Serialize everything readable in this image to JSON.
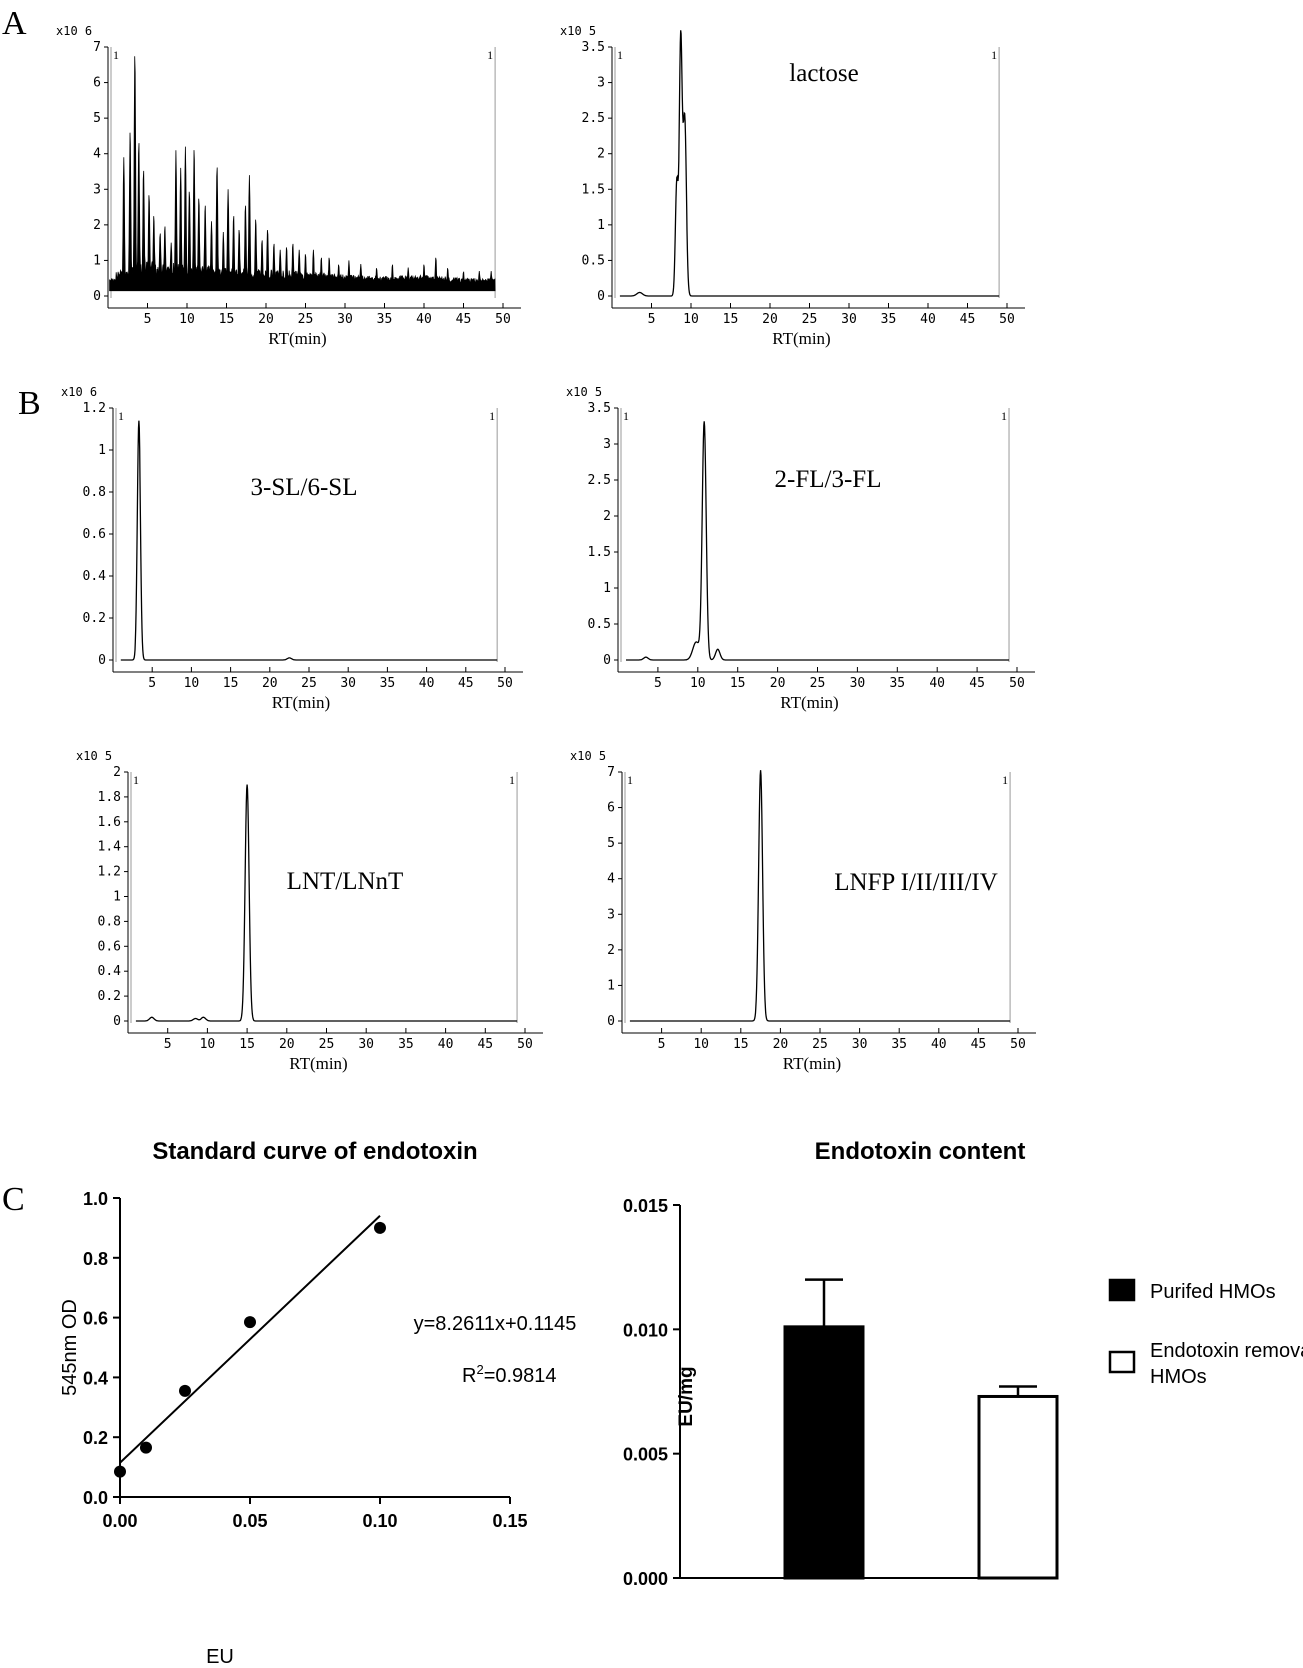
{
  "panels": {
    "A": "A",
    "B": "B",
    "C": "C"
  },
  "chart_data": [
    {
      "id": "A1",
      "type": "line",
      "title": "",
      "xlabel": "RT(min)",
      "ylabel": "",
      "multiplier": "x10 6",
      "annotation": "",
      "marker_left": "1",
      "marker_right": "1",
      "xlim": [
        0,
        50
      ],
      "ylim": [
        0,
        7
      ],
      "xticks": [
        5,
        10,
        15,
        20,
        25,
        30,
        35,
        40,
        45,
        50
      ],
      "yticks": [
        0,
        1,
        2,
        3,
        4,
        5,
        6,
        7
      ],
      "x_end": 49,
      "baseline": 0.3,
      "noise": [
        [
          1.0,
          0.7
        ],
        [
          5.0,
          1.0
        ],
        [
          10.0,
          0.9
        ],
        [
          15.0,
          0.8
        ],
        [
          20.0,
          0.75
        ],
        [
          25.0,
          0.7
        ],
        [
          30.0,
          0.6
        ],
        [
          35.0,
          0.55
        ],
        [
          40.0,
          0.6
        ],
        [
          45.0,
          0.5
        ],
        [
          49.0,
          0.5
        ]
      ],
      "peaks": [
        [
          2.0,
          3.9
        ],
        [
          2.8,
          4.7
        ],
        [
          3.4,
          6.9
        ],
        [
          3.9,
          4.4
        ],
        [
          4.5,
          3.6
        ],
        [
          5.2,
          2.9
        ],
        [
          5.8,
          2.3
        ],
        [
          6.6,
          1.8
        ],
        [
          7.2,
          2.0
        ],
        [
          8.0,
          1.5
        ],
        [
          8.6,
          4.1
        ],
        [
          9.2,
          3.6
        ],
        [
          9.8,
          4.2
        ],
        [
          10.3,
          3.0
        ],
        [
          10.9,
          4.2
        ],
        [
          11.5,
          2.8
        ],
        [
          12.3,
          2.6
        ],
        [
          13.1,
          2.1
        ],
        [
          13.8,
          3.7
        ],
        [
          14.6,
          1.8
        ],
        [
          15.2,
          3.0
        ],
        [
          15.9,
          2.3
        ],
        [
          16.6,
          1.9
        ],
        [
          17.4,
          2.6
        ],
        [
          17.9,
          3.4
        ],
        [
          18.7,
          2.2
        ],
        [
          19.5,
          1.6
        ],
        [
          20.2,
          1.9
        ],
        [
          21.0,
          1.5
        ],
        [
          21.8,
          1.3
        ],
        [
          22.6,
          1.4
        ],
        [
          23.4,
          1.5
        ],
        [
          24.2,
          1.3
        ],
        [
          25.0,
          1.2
        ],
        [
          26.0,
          1.3
        ],
        [
          27.0,
          1.1
        ],
        [
          28.0,
          1.1
        ],
        [
          29.2,
          0.9
        ],
        [
          30.5,
          1.0
        ],
        [
          32.0,
          0.9
        ],
        [
          34.0,
          0.8
        ],
        [
          36.0,
          0.9
        ],
        [
          38.0,
          0.8
        ],
        [
          40.0,
          0.9
        ],
        [
          41.5,
          1.1
        ],
        [
          43.0,
          0.8
        ],
        [
          45.0,
          0.7
        ],
        [
          47.0,
          0.7
        ],
        [
          48.5,
          0.7
        ]
      ]
    },
    {
      "id": "A2",
      "type": "line",
      "title": "",
      "xlabel": "RT(min)",
      "ylabel": "",
      "multiplier": "x10 5",
      "annotation": "lactose",
      "marker_left": "1",
      "marker_right": "1",
      "xlim": [
        0,
        50
      ],
      "ylim": [
        0,
        3.5
      ],
      "xticks": [
        5,
        10,
        15,
        20,
        25,
        30,
        35,
        40,
        45,
        50
      ],
      "yticks": [
        0,
        0.5,
        1,
        1.5,
        2,
        2.5,
        3,
        3.5
      ],
      "x_end": 49,
      "baseline": 0.0,
      "peaks": [
        [
          3.5,
          0.05,
          0.5
        ],
        [
          8.2,
          1.6,
          0.25
        ],
        [
          8.7,
          3.55,
          0.25
        ],
        [
          9.2,
          2.5,
          0.3
        ]
      ]
    },
    {
      "id": "B1",
      "type": "line",
      "title": "",
      "xlabel": "RT(min)",
      "ylabel": "",
      "multiplier": "x10 6",
      "annotation": "3-SL/6-SL",
      "marker_left": "1",
      "marker_right": "1",
      "xlim": [
        0,
        50
      ],
      "ylim": [
        0,
        1.2
      ],
      "xticks": [
        5,
        10,
        15,
        20,
        25,
        30,
        35,
        40,
        45,
        50
      ],
      "yticks": [
        0,
        0.2,
        0.4,
        0.6,
        0.8,
        1,
        1.2
      ],
      "x_end": 49,
      "baseline": 0.0,
      "peaks": [
        [
          3.3,
          1.14,
          0.28
        ],
        [
          22.5,
          0.01,
          0.4
        ]
      ]
    },
    {
      "id": "B2",
      "type": "line",
      "title": "",
      "xlabel": "RT(min)",
      "ylabel": "",
      "multiplier": "x10 5",
      "annotation": "2-FL/3-FL",
      "marker_left": "1",
      "marker_right": "1",
      "xlim": [
        0,
        50
      ],
      "ylim": [
        0,
        3.5
      ],
      "xticks": [
        5,
        10,
        15,
        20,
        25,
        30,
        35,
        40,
        45,
        50
      ],
      "yticks": [
        0,
        0.5,
        1,
        1.5,
        2,
        2.5,
        3,
        3.5
      ],
      "x_end": 49,
      "baseline": 0.0,
      "peaks": [
        [
          3.5,
          0.04,
          0.4
        ],
        [
          9.8,
          0.25,
          0.6
        ],
        [
          10.8,
          3.3,
          0.35
        ],
        [
          12.5,
          0.15,
          0.4
        ]
      ]
    },
    {
      "id": "B3",
      "type": "line",
      "title": "",
      "xlabel": "RT(min)",
      "ylabel": "",
      "multiplier": "x10 5",
      "annotation": "LNT/LNnT",
      "marker_left": "1",
      "marker_right": "1",
      "xlim": [
        0,
        50
      ],
      "ylim": [
        0,
        2
      ],
      "xticks": [
        5,
        10,
        15,
        20,
        25,
        30,
        35,
        40,
        45,
        50
      ],
      "yticks": [
        0,
        0.2,
        0.4,
        0.6,
        0.8,
        1,
        1.2,
        1.4,
        1.6,
        1.8,
        2
      ],
      "x_end": 49,
      "baseline": 0.0,
      "peaks": [
        [
          3.0,
          0.03,
          0.4
        ],
        [
          8.5,
          0.02,
          0.4
        ],
        [
          9.5,
          0.03,
          0.4
        ],
        [
          15.0,
          1.9,
          0.35
        ]
      ]
    },
    {
      "id": "B4",
      "type": "line",
      "title": "",
      "xlabel": "RT(min)",
      "ylabel": "",
      "multiplier": "x10 5",
      "annotation": "LNFP I/II/III/IV",
      "marker_left": "1",
      "marker_right": "1",
      "xlim": [
        0,
        50
      ],
      "ylim": [
        0,
        7
      ],
      "xticks": [
        5,
        10,
        15,
        20,
        25,
        30,
        35,
        40,
        45,
        50
      ],
      "yticks": [
        0,
        1,
        2,
        3,
        4,
        5,
        6,
        7
      ],
      "x_end": 49,
      "baseline": 0.0,
      "peaks": [
        [
          17.5,
          7.05,
          0.35
        ]
      ]
    },
    {
      "id": "C1",
      "type": "scatter",
      "title": "Standard curve of endotoxin",
      "xlabel": "EU",
      "ylabel": "545nm OD",
      "xlim": [
        0,
        0.15
      ],
      "ylim": [
        0,
        1.0
      ],
      "xticks": [
        0.0,
        0.05,
        0.1,
        0.15
      ],
      "xtick_labels": [
        "0.00",
        "0.05",
        "0.10",
        "0.15"
      ],
      "yticks": [
        0.0,
        0.2,
        0.4,
        0.6,
        0.8,
        1.0
      ],
      "ytick_labels": [
        "0.0",
        "0.2",
        "0.4",
        "0.6",
        "0.8",
        "1.0"
      ],
      "points": [
        {
          "x": 0.0,
          "y": 0.085
        },
        {
          "x": 0.01,
          "y": 0.165
        },
        {
          "x": 0.025,
          "y": 0.355
        },
        {
          "x": 0.05,
          "y": 0.585
        },
        {
          "x": 0.1,
          "y": 0.9
        }
      ],
      "fit": {
        "slope": 8.2611,
        "intercept": 0.1145,
        "x_range": [
          0,
          0.1
        ]
      },
      "equation": "y=8.2611x+0.1145",
      "r2_prefix": "R",
      "r2_sup": "2",
      "r2_value": "=0.9814"
    },
    {
      "id": "C2",
      "type": "bar",
      "title": "Endotoxin content",
      "xlabel": "",
      "ylabel": "EU/mg",
      "ylim": [
        0,
        0.015
      ],
      "yticks": [
        0.0,
        0.005,
        0.01,
        0.015
      ],
      "ytick_labels": [
        "0.000",
        "0.005",
        "0.010",
        "0.015"
      ],
      "series": [
        {
          "name": "Purifed HMOs",
          "value": 0.0101,
          "error": 0.0019,
          "fill": "#000000"
        },
        {
          "name": "Endotoxin removal HMOs",
          "value": 0.0073,
          "error": 0.0004,
          "fill": "#ffffff"
        }
      ],
      "legend": [
        {
          "lines": [
            "Purifed HMOs"
          ],
          "fill": "#000000"
        },
        {
          "lines": [
            "Endotoxin removal",
            "HMOs"
          ],
          "fill": "#ffffff"
        }
      ]
    }
  ]
}
